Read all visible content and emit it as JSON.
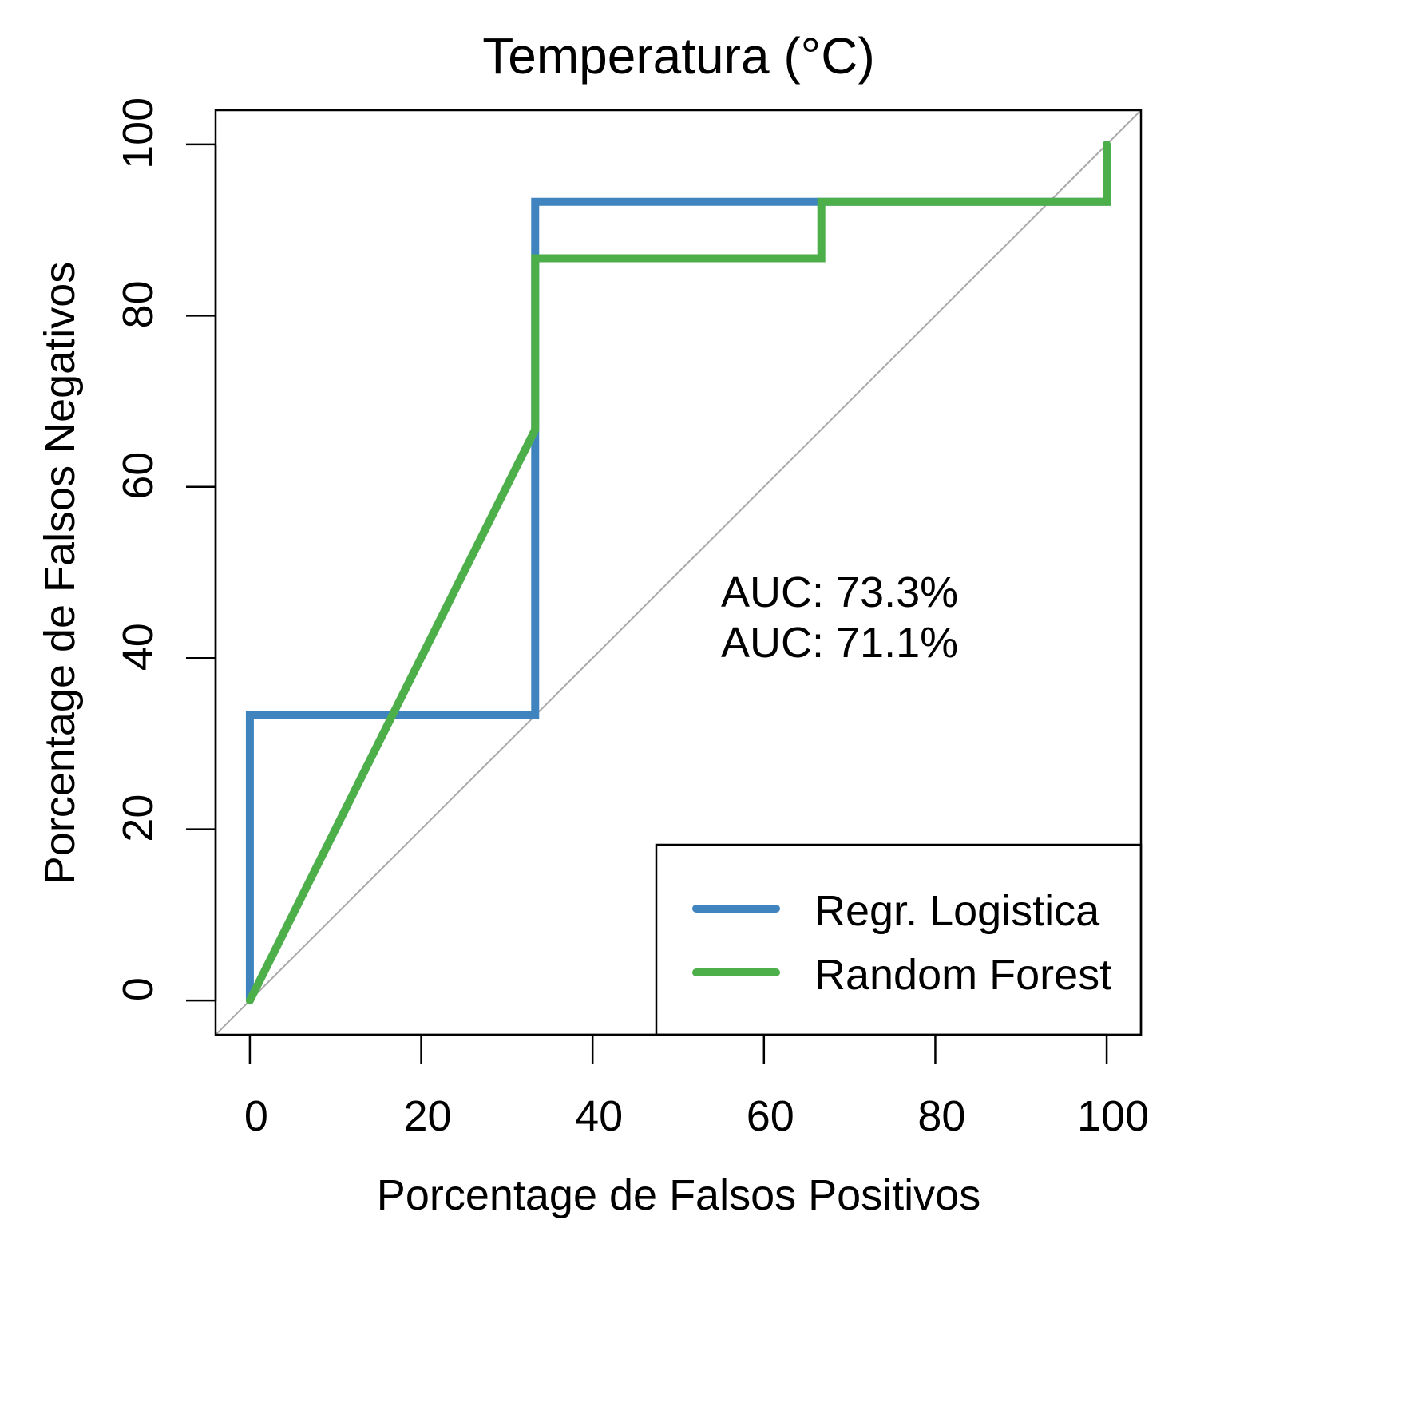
{
  "chart_data": {
    "type": "line",
    "title": "Temperatura (°C)",
    "xlabel": "Porcentage de Falsos Positivos",
    "ylabel": "Porcentage de Falsos Negativos",
    "xlim": [
      -4,
      104
    ],
    "ylim": [
      -4,
      104
    ],
    "xticks": [
      0,
      20,
      40,
      60,
      80,
      100
    ],
    "yticks": [
      0,
      20,
      40,
      60,
      80,
      100
    ],
    "xtick_labels": [
      "0",
      "20",
      "40",
      "60",
      "80",
      "100"
    ],
    "ytick_labels": [
      "0",
      "20",
      "40",
      "60",
      "80",
      "100"
    ],
    "grid": false,
    "legend_position": "bottom-right",
    "reference_line": {
      "x": [
        -4,
        104
      ],
      "y": [
        -4,
        104
      ],
      "color": "#A9A9A9"
    },
    "series": [
      {
        "name": "Regr. Logistica",
        "color": "#3F84BE",
        "x": [
          0,
          0,
          33.3,
          33.3,
          33.3,
          66.7,
          100,
          100
        ],
        "y": [
          0,
          33.3,
          33.3,
          66.7,
          93.3,
          93.3,
          93.3,
          100
        ]
      },
      {
        "name": "Random Forest",
        "color": "#4DAF4A",
        "x": [
          0,
          33.3,
          33.3,
          66.7,
          66.7,
          100,
          100
        ],
        "y": [
          0,
          66.7,
          86.7,
          86.7,
          93.3,
          93.3,
          100
        ]
      }
    ],
    "annotations": [
      {
        "text": "AUC: 73.3%",
        "color": "#3F84BE",
        "x": 53,
        "y": 48
      },
      {
        "text": "AUC: 71.1%",
        "color": "#4DAF4A",
        "x": 53,
        "y": 42
      }
    ]
  }
}
